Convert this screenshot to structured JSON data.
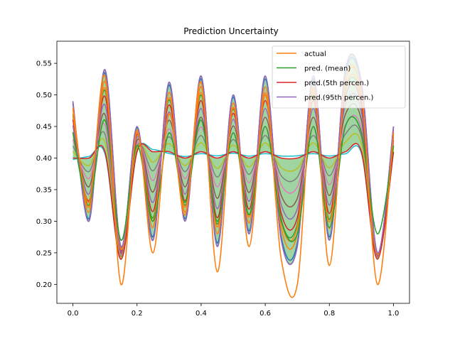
{
  "chart_data": {
    "type": "line",
    "title": "Prediction  Uncertainty",
    "xlabel": "",
    "ylabel": "",
    "xlim": [
      -0.05,
      1.05
    ],
    "ylim": [
      0.17,
      0.585
    ],
    "xticks": [
      0.0,
      0.2,
      0.4,
      0.6,
      0.8,
      1.0
    ],
    "xtick_labels": [
      "0.0",
      "0.2",
      "0.4",
      "0.6",
      "0.8",
      "1.0"
    ],
    "yticks": [
      0.2,
      0.25,
      0.3,
      0.35,
      0.4,
      0.45,
      0.5,
      0.55
    ],
    "ytick_labels": [
      "0.20",
      "0.25",
      "0.30",
      "0.35",
      "0.40",
      "0.45",
      "0.50",
      "0.55"
    ],
    "grid": false,
    "legend_placement": "top-right",
    "x": [
      0.0,
      0.05,
      0.1,
      0.15,
      0.2,
      0.25,
      0.3,
      0.35,
      0.4,
      0.45,
      0.5,
      0.55,
      0.6,
      0.65,
      0.7,
      0.75,
      0.8,
      0.85,
      0.9,
      0.95,
      1.0
    ],
    "series": [
      {
        "name": "actual",
        "color": "#ff7f0e",
        "values": [
          0.48,
          0.33,
          0.53,
          0.2,
          0.44,
          0.25,
          0.47,
          0.31,
          0.52,
          0.22,
          0.48,
          0.26,
          0.5,
          0.24,
          0.2,
          0.51,
          0.23,
          0.52,
          0.5,
          0.2,
          0.44
        ]
      },
      {
        "name": "pred. (mean)",
        "color": "#2ca02c",
        "values": [
          0.44,
          0.33,
          0.46,
          0.27,
          0.42,
          0.3,
          0.44,
          0.33,
          0.46,
          0.3,
          0.44,
          0.31,
          0.45,
          0.3,
          0.28,
          0.45,
          0.29,
          0.45,
          0.44,
          0.28,
          0.42
        ]
      },
      {
        "name": "pred.(5th percen.)",
        "color": "#d62728",
        "values": [
          0.4,
          0.4,
          0.41,
          0.24,
          0.41,
          0.41,
          0.41,
          0.4,
          0.41,
          0.4,
          0.41,
          0.4,
          0.41,
          0.4,
          0.4,
          0.41,
          0.4,
          0.41,
          0.41,
          0.24,
          0.41
        ]
      },
      {
        "name": "pred.(95th percen.)",
        "color": "#9467bd",
        "values": [
          0.49,
          0.3,
          0.54,
          0.26,
          0.45,
          0.27,
          0.52,
          0.3,
          0.53,
          0.26,
          0.5,
          0.28,
          0.53,
          0.27,
          0.26,
          0.53,
          0.27,
          0.54,
          0.52,
          0.25,
          0.45
        ]
      }
    ],
    "fill_between": {
      "lower": "pred.(5th percen.)",
      "upper": "pred.(95th percen.)",
      "color": "#2ca02c",
      "alpha": 0.45
    }
  }
}
